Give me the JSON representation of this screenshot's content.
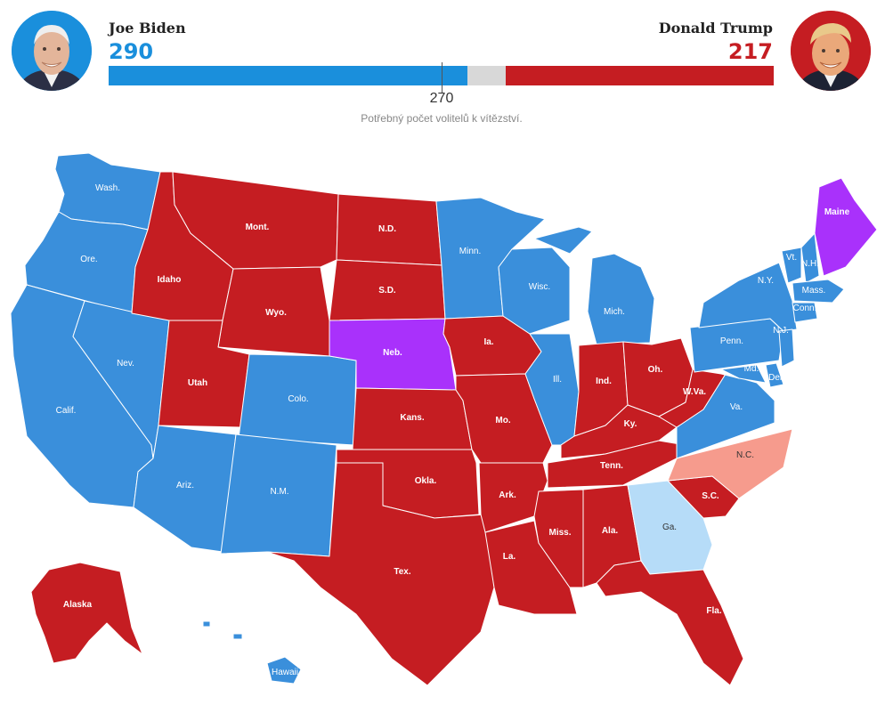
{
  "header": {
    "left": {
      "name": "Joe Biden",
      "votes": "290"
    },
    "right": {
      "name": "Donald Trump",
      "votes": "217"
    },
    "bar": {
      "total": 538,
      "left_votes": 290,
      "right_votes": 217
    },
    "threshold": {
      "value": "270",
      "caption": "Potřebný počet volitelů k vítězství."
    }
  },
  "colors": {
    "dem": "#3a8fdb",
    "dem_light": "#b6dcf8",
    "rep": "#c51d22",
    "rep_light": "#f69b8d",
    "split": "#a931fb"
  },
  "legend_text": {
    "dem_label": "#ffffff",
    "rep_label": "#ffffff"
  },
  "map": {
    "states": [
      {
        "id": "wa",
        "label": "Wash.",
        "status": "dem"
      },
      {
        "id": "or",
        "label": "Ore.",
        "status": "dem"
      },
      {
        "id": "ca",
        "label": "Calif.",
        "status": "dem"
      },
      {
        "id": "nv",
        "label": "Nev.",
        "status": "dem"
      },
      {
        "id": "id",
        "label": "Idaho",
        "status": "rep"
      },
      {
        "id": "mt",
        "label": "Mont.",
        "status": "rep"
      },
      {
        "id": "wy",
        "label": "Wyo.",
        "status": "rep"
      },
      {
        "id": "ut",
        "label": "Utah",
        "status": "rep"
      },
      {
        "id": "az",
        "label": "Ariz.",
        "status": "dem"
      },
      {
        "id": "co",
        "label": "Colo.",
        "status": "dem"
      },
      {
        "id": "nm",
        "label": "N.M.",
        "status": "dem"
      },
      {
        "id": "nd",
        "label": "N.D.",
        "status": "rep"
      },
      {
        "id": "sd",
        "label": "S.D.",
        "status": "rep"
      },
      {
        "id": "ne",
        "label": "Neb.",
        "status": "split"
      },
      {
        "id": "ks",
        "label": "Kans.",
        "status": "rep"
      },
      {
        "id": "ok",
        "label": "Okla.",
        "status": "rep"
      },
      {
        "id": "tx",
        "label": "Tex.",
        "status": "rep"
      },
      {
        "id": "mn",
        "label": "Minn.",
        "status": "dem"
      },
      {
        "id": "ia",
        "label": "Ia.",
        "status": "rep"
      },
      {
        "id": "mo",
        "label": "Mo.",
        "status": "rep"
      },
      {
        "id": "ar",
        "label": "Ark.",
        "status": "rep"
      },
      {
        "id": "la",
        "label": "La.",
        "status": "rep"
      },
      {
        "id": "wi",
        "label": "Wisc.",
        "status": "dem"
      },
      {
        "id": "il",
        "label": "Ill.",
        "status": "dem"
      },
      {
        "id": "mi",
        "label": "Mich.",
        "status": "dem"
      },
      {
        "id": "in",
        "label": "Ind.",
        "status": "rep"
      },
      {
        "id": "oh",
        "label": "Oh.",
        "status": "rep"
      },
      {
        "id": "ky",
        "label": "Ky.",
        "status": "rep"
      },
      {
        "id": "tn",
        "label": "Tenn.",
        "status": "rep"
      },
      {
        "id": "ms",
        "label": "Miss.",
        "status": "rep"
      },
      {
        "id": "al",
        "label": "Ala.",
        "status": "rep"
      },
      {
        "id": "ga",
        "label": "Ga.",
        "status": "dem_light"
      },
      {
        "id": "fl",
        "label": "Fla.",
        "status": "rep"
      },
      {
        "id": "sc",
        "label": "S.C.",
        "status": "rep"
      },
      {
        "id": "nc",
        "label": "N.C.",
        "status": "rep_light"
      },
      {
        "id": "va",
        "label": "Va.",
        "status": "dem"
      },
      {
        "id": "wv",
        "label": "W.Va.",
        "status": "rep"
      },
      {
        "id": "pa",
        "label": "Penn.",
        "status": "dem"
      },
      {
        "id": "ny",
        "label": "N.Y.",
        "status": "dem"
      },
      {
        "id": "vt",
        "label": "Vt.",
        "status": "dem"
      },
      {
        "id": "nh",
        "label": "N.H.",
        "status": "dem"
      },
      {
        "id": "me",
        "label": "Maine",
        "status": "split"
      },
      {
        "id": "ma",
        "label": "Mass.",
        "status": "dem"
      },
      {
        "id": "ct",
        "label": "Conn.",
        "status": "dem"
      },
      {
        "id": "nj",
        "label": "N.J.",
        "status": "dem"
      },
      {
        "id": "md",
        "label": "Md.",
        "status": "dem"
      },
      {
        "id": "de",
        "label": "Del.",
        "status": "dem"
      },
      {
        "id": "ak",
        "label": "Alaska",
        "status": "rep"
      },
      {
        "id": "hi",
        "label": "Hawaii",
        "status": "dem"
      }
    ]
  }
}
